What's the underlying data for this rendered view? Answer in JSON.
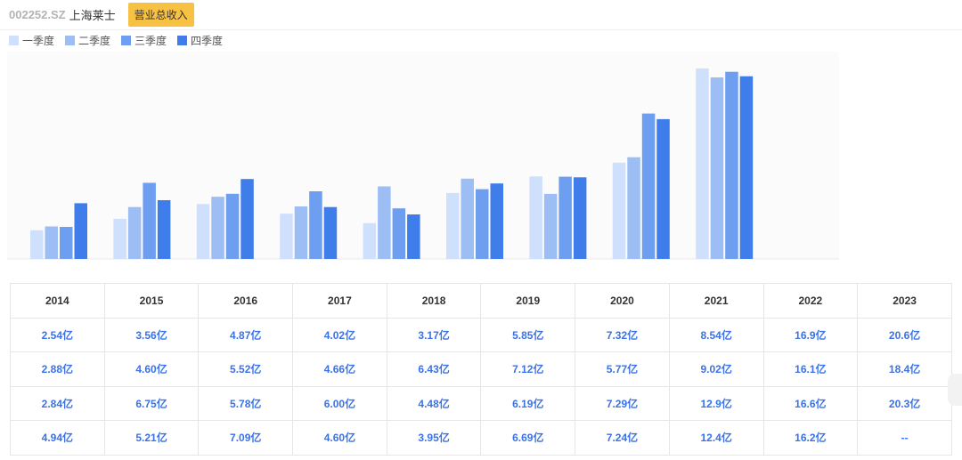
{
  "header": {
    "ticker": "002252.SZ",
    "company": "上海莱士",
    "metric_button": "营业总收入"
  },
  "colors": {
    "q1": "#cfe0fc",
    "q2": "#9dbdf5",
    "q3": "#6d9ef0",
    "q4": "#3f7deb",
    "button": "#f7c143",
    "value_text": "#3b72e8"
  },
  "chart_data": {
    "type": "bar",
    "categories": [
      "2014",
      "2015",
      "2016",
      "2017",
      "2018",
      "2019",
      "2020",
      "2021",
      "2022"
    ],
    "series": [
      {
        "name": "一季度",
        "values": [
          2.54,
          3.56,
          4.87,
          4.02,
          3.17,
          5.85,
          7.32,
          8.54,
          16.9
        ]
      },
      {
        "name": "二季度",
        "values": [
          2.88,
          4.6,
          5.52,
          4.66,
          6.43,
          7.12,
          5.77,
          9.02,
          16.1
        ]
      },
      {
        "name": "三季度",
        "values": [
          2.84,
          6.75,
          5.78,
          6.0,
          4.48,
          6.19,
          7.29,
          12.9,
          16.6
        ]
      },
      {
        "name": "四季度",
        "values": [
          4.94,
          5.21,
          7.09,
          4.6,
          3.95,
          6.69,
          7.24,
          12.4,
          16.2
        ]
      }
    ],
    "unit": "亿",
    "legend_position": "top-left",
    "grid": false
  },
  "table": {
    "headers": [
      "2014",
      "2015",
      "2016",
      "2017",
      "2018",
      "2019",
      "2020",
      "2021",
      "2022",
      "2023"
    ],
    "rows": [
      [
        "2.54亿",
        "3.56亿",
        "4.87亿",
        "4.02亿",
        "3.17亿",
        "5.85亿",
        "7.32亿",
        "8.54亿",
        "16.9亿",
        "20.6亿"
      ],
      [
        "2.88亿",
        "4.60亿",
        "5.52亿",
        "4.66亿",
        "6.43亿",
        "7.12亿",
        "5.77亿",
        "9.02亿",
        "16.1亿",
        "18.4亿"
      ],
      [
        "2.84亿",
        "6.75亿",
        "5.78亿",
        "6.00亿",
        "4.48亿",
        "6.19亿",
        "7.29亿",
        "12.9亿",
        "16.6亿",
        "20.3亿"
      ],
      [
        "4.94亿",
        "5.21亿",
        "7.09亿",
        "4.60亿",
        "3.95亿",
        "6.69亿",
        "7.24亿",
        "12.4亿",
        "16.2亿",
        "--"
      ]
    ]
  }
}
